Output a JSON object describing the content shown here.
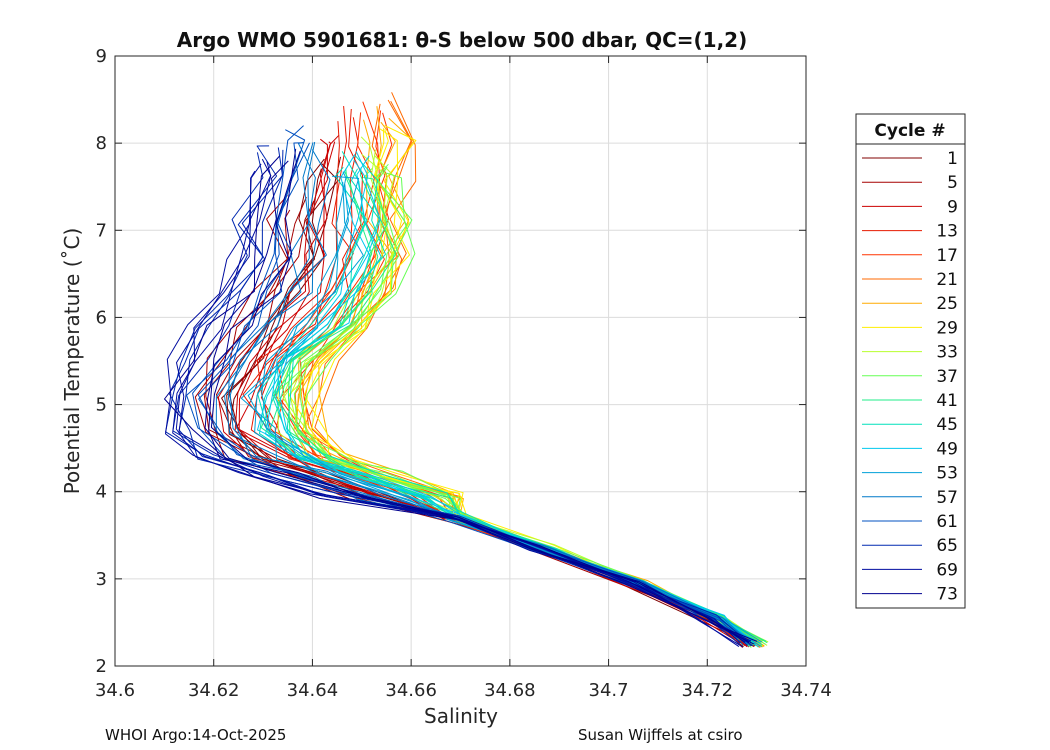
{
  "chart_data": {
    "type": "line",
    "title": "Argo WMO 5901681: θ-S below 500 dbar,  QC=(1,2)",
    "xlabel": "Salinity",
    "ylabel": "Potential Temperature (˚C)",
    "xlim": [
      34.6,
      34.74
    ],
    "ylim": [
      2,
      9
    ],
    "xticks": [
      "34.6",
      "34.62",
      "34.64",
      "34.66",
      "34.68",
      "34.7",
      "34.72",
      "34.74"
    ],
    "yticks": [
      "2",
      "3",
      "4",
      "5",
      "6",
      "7",
      "8",
      "9"
    ],
    "grid": true,
    "legend": {
      "title": "Cycle #",
      "position": "outside-right",
      "entries": [
        {
          "label": "1",
          "color": "#800000"
        },
        {
          "label": "5",
          "color": "#a50000"
        },
        {
          "label": "9",
          "color": "#cc0000"
        },
        {
          "label": "13",
          "color": "#e61a00"
        },
        {
          "label": "17",
          "color": "#ff3300"
        },
        {
          "label": "21",
          "color": "#ff6a00"
        },
        {
          "label": "25",
          "color": "#ffaa00"
        },
        {
          "label": "29",
          "color": "#ffee00"
        },
        {
          "label": "33",
          "color": "#b8ff2e"
        },
        {
          "label": "37",
          "color": "#66ff55"
        },
        {
          "label": "41",
          "color": "#22ee88"
        },
        {
          "label": "45",
          "color": "#00e0bb"
        },
        {
          "label": "49",
          "color": "#00c8ee"
        },
        {
          "label": "53",
          "color": "#00a0d8"
        },
        {
          "label": "57",
          "color": "#0078c8"
        },
        {
          "label": "61",
          "color": "#0050c0"
        },
        {
          "label": "65",
          "color": "#0028b0"
        },
        {
          "label": "69",
          "color": "#000ca0"
        },
        {
          "label": "73",
          "color": "#00008f"
        }
      ]
    },
    "profile_template": {
      "s": [
        34.728,
        34.72,
        34.705,
        34.685,
        34.668,
        34.652,
        34.638,
        34.628,
        34.622,
        34.621,
        34.624,
        34.628,
        34.633,
        34.636,
        34.636,
        34.639,
        34.64
      ],
      "t": [
        2.25,
        2.55,
        2.95,
        3.35,
        3.7,
        3.95,
        4.2,
        4.4,
        4.7,
        5.1,
        5.5,
        5.9,
        6.3,
        6.7,
        7.1,
        7.6,
        8.0
      ]
    },
    "series": [
      {
        "name": "1",
        "ds": 0.003,
        "tTop": 7.75,
        "shape": 0.3
      },
      {
        "name": "5",
        "ds": -0.002,
        "tTop": 7.3,
        "shape": 0.2
      },
      {
        "name": "9",
        "ds": 0.004,
        "tTop": 8.0,
        "shape": 0.4
      },
      {
        "name": "13",
        "ds": 0.008,
        "tTop": 8.3,
        "shape": 0.9
      },
      {
        "name": "17",
        "ds": 0.012,
        "tTop": 8.4,
        "shape": 1.1
      },
      {
        "name": "21",
        "ds": 0.016,
        "tTop": 8.55,
        "shape": 1.4
      },
      {
        "name": "25",
        "ds": 0.015,
        "tTop": 8.35,
        "shape": 1.6
      },
      {
        "name": "29",
        "ds": 0.014,
        "tTop": 8.25,
        "shape": 1.8
      },
      {
        "name": "33",
        "ds": 0.013,
        "tTop": 7.95,
        "shape": 2.0
      },
      {
        "name": "37",
        "ds": 0.012,
        "tTop": 7.7,
        "shape": 2.2
      },
      {
        "name": "41",
        "ds": 0.01,
        "tTop": 7.6,
        "shape": 2.2
      },
      {
        "name": "45",
        "ds": 0.009,
        "tTop": 7.8,
        "shape": 2.0
      },
      {
        "name": "49",
        "ds": 0.008,
        "tTop": 7.9,
        "shape": 1.9
      },
      {
        "name": "53",
        "ds": 0.004,
        "tTop": 7.6,
        "shape": 1.4
      },
      {
        "name": "57",
        "ds": 0.001,
        "tTop": 7.9,
        "shape": 0.9
      },
      {
        "name": "61",
        "ds": -0.004,
        "tTop": 8.1,
        "shape": 0.6
      },
      {
        "name": "65",
        "ds": -0.008,
        "tTop": 8.0,
        "shape": 0.2
      },
      {
        "name": "69",
        "ds": -0.01,
        "tTop": 7.7,
        "shape": 0.0
      },
      {
        "name": "73",
        "ds": -0.006,
        "tTop": 7.9,
        "shape": 0.3
      }
    ]
  },
  "footer": {
    "left": "WHOI Argo:14-Oct-2025",
    "right": "Susan Wijffels at csiro"
  }
}
